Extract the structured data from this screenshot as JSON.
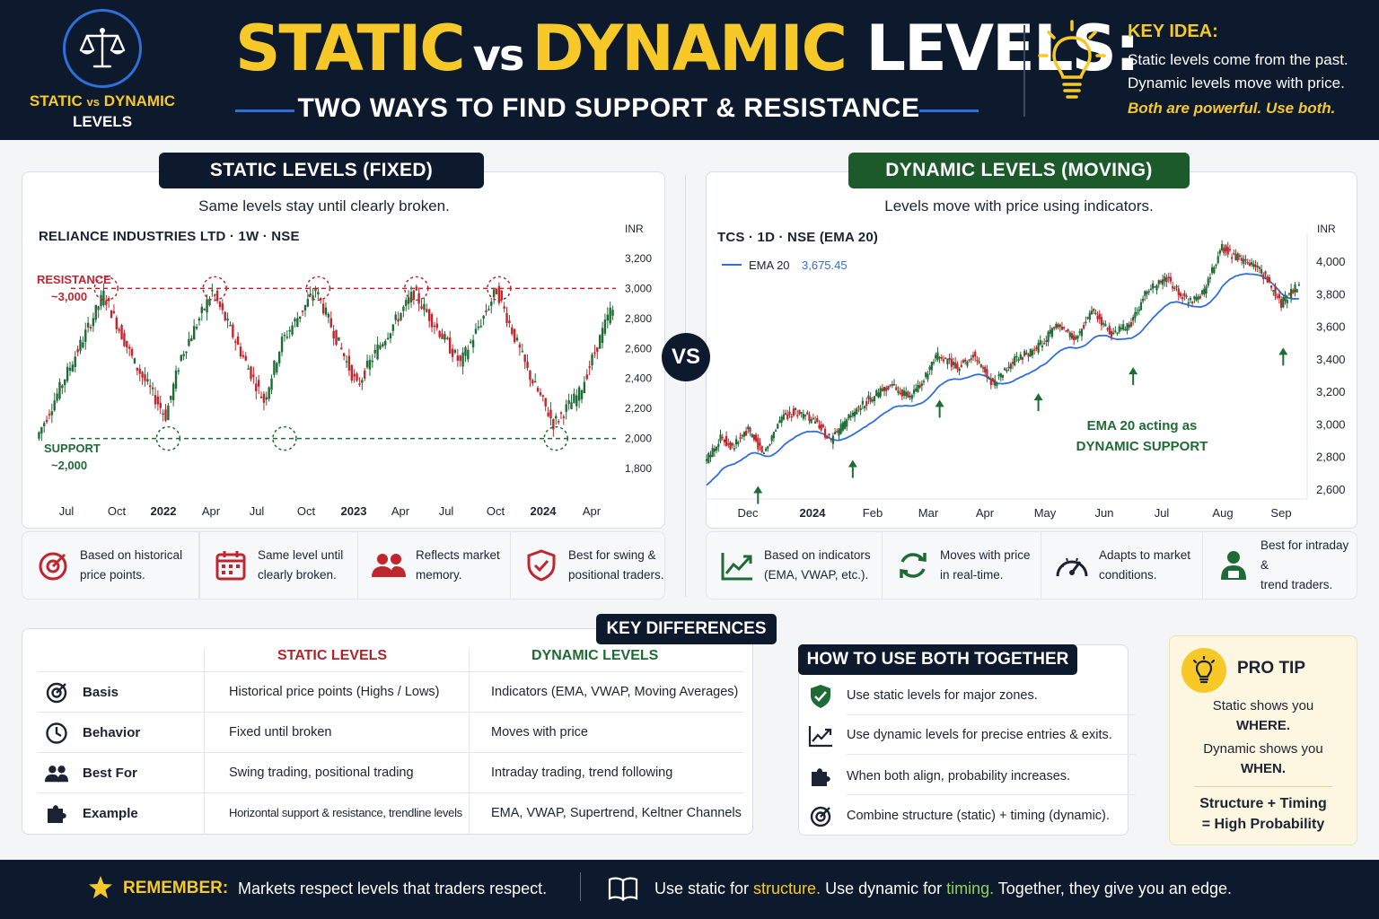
{
  "header": {
    "logo_line1_a": "STATIC",
    "logo_line1_vs": "vs",
    "logo_line1_b": "DYNAMIC",
    "logo_line2": "LEVELS",
    "title_static": "STATIC",
    "title_vs": "vs",
    "title_dynamic": "DYNAMIC",
    "title_levels": "LEVELS:",
    "subtitle": "TWO WAYS TO FIND SUPPORT & RESISTANCE",
    "key_idea_title": "KEY IDEA:",
    "key_idea_line1": "Static levels come from the past.",
    "key_idea_line2": "Dynamic levels move with price.",
    "key_idea_line3": "Both are powerful. Use both."
  },
  "static_panel": {
    "tag": "STATIC LEVELS (FIXED)",
    "subtitle": "Same levels stay until clearly broken.",
    "ticker": "RELIANCE INDUSTRIES LTD · 1W · NSE",
    "features": [
      {
        "icon": "target-icon",
        "line1": "Based on historical",
        "line2": "price points."
      },
      {
        "icon": "calendar-icon",
        "line1": "Same level until",
        "line2": "clearly broken."
      },
      {
        "icon": "users-icon",
        "line1": "Reflects market",
        "line2": "memory."
      },
      {
        "icon": "shield-check-icon",
        "line1": "Best for swing &",
        "line2": "positional traders."
      }
    ]
  },
  "dynamic_panel": {
    "tag": "DYNAMIC LEVELS (MOVING)",
    "subtitle": "Levels move with price using indicators.",
    "ticker": "TCS · 1D · NSE (EMA 20)",
    "features": [
      {
        "icon": "trend-up-icon",
        "line1": "Based on indicators",
        "line2": "(EMA, VWAP, etc.)."
      },
      {
        "icon": "refresh-icon",
        "line1": "Moves with price",
        "line2": "in real-time."
      },
      {
        "icon": "gauge-icon",
        "line1": "Adapts to market",
        "line2": "conditions."
      },
      {
        "icon": "trader-icon",
        "line1": "Best for intraday &",
        "line2": "trend traders."
      }
    ]
  },
  "vs_badge": "VS",
  "chart_data": [
    {
      "type": "candlestick",
      "title": "RELIANCE INDUSTRIES LTD · 1W · NSE",
      "ylabel": "INR",
      "ylim": [
        1700,
        3300
      ],
      "yticks": [
        "3,200",
        "3,000",
        "2,800",
        "2,600",
        "2,400",
        "2,200",
        "2,000",
        "1,800"
      ],
      "xticks": [
        "Jul",
        "Oct",
        "2022",
        "Apr",
        "Jul",
        "Oct",
        "2023",
        "Apr",
        "Jul",
        "Oct",
        "2024",
        "Apr"
      ],
      "resistance": {
        "value": 3000,
        "label": "RESISTANCE",
        "sublabel": "~3,000"
      },
      "support": {
        "value": 2000,
        "label": "SUPPORT",
        "sublabel": "~2,000"
      },
      "path": [
        [
          0,
          2000
        ],
        [
          26,
          2960
        ],
        [
          38,
          2500
        ],
        [
          50,
          2150
        ],
        [
          56,
          2550
        ],
        [
          68,
          2980
        ],
        [
          88,
          2250
        ],
        [
          95,
          2650
        ],
        [
          108,
          2990
        ],
        [
          124,
          2350
        ],
        [
          132,
          2600
        ],
        [
          146,
          2970
        ],
        [
          164,
          2500
        ],
        [
          178,
          2990
        ],
        [
          190,
          2450
        ],
        [
          200,
          2100
        ],
        [
          210,
          2300
        ],
        [
          222,
          2850
        ]
      ],
      "highlights": {
        "resistance_x": [
          26,
          68,
          108,
          146,
          178
        ],
        "support_x": [
          50,
          95,
          200
        ]
      }
    },
    {
      "type": "candlestick",
      "title": "TCS · 1D · NSE (EMA 20)",
      "ylabel": "INR",
      "ylim": [
        2550,
        4150
      ],
      "yticks": [
        "4,000",
        "3,800",
        "3,600",
        "3,400",
        "3,200",
        "3,000",
        "2,800",
        "2,600"
      ],
      "xticks": [
        "Dec",
        "2024",
        "Feb",
        "Mar",
        "Apr",
        "May",
        "Jun",
        "Jul",
        "Aug",
        "Sep"
      ],
      "series": [
        {
          "name": "EMA 20",
          "last_value": "3,675.45"
        }
      ],
      "path": [
        [
          0,
          2760
        ],
        [
          8,
          2920
        ],
        [
          14,
          2860
        ],
        [
          22,
          2960
        ],
        [
          30,
          2820
        ],
        [
          38,
          3030
        ],
        [
          46,
          3080
        ],
        [
          56,
          3010
        ],
        [
          64,
          2900
        ],
        [
          74,
          3050
        ],
        [
          84,
          3160
        ],
        [
          94,
          3240
        ],
        [
          104,
          3160
        ],
        [
          112,
          3290
        ],
        [
          118,
          3420
        ],
        [
          128,
          3350
        ],
        [
          136,
          3420
        ],
        [
          146,
          3250
        ],
        [
          158,
          3400
        ],
        [
          168,
          3460
        ],
        [
          178,
          3600
        ],
        [
          188,
          3520
        ],
        [
          196,
          3700
        ],
        [
          206,
          3550
        ],
        [
          216,
          3620
        ],
        [
          224,
          3820
        ],
        [
          234,
          3890
        ],
        [
          244,
          3760
        ],
        [
          252,
          3800
        ],
        [
          262,
          4080
        ],
        [
          272,
          4000
        ],
        [
          280,
          3960
        ],
        [
          288,
          3830
        ],
        [
          292,
          3740
        ],
        [
          300,
          3850
        ]
      ],
      "support_arrows_x": [
        26,
        74,
        118,
        168,
        216,
        292
      ],
      "annotation": [
        "EMA 20 acting as",
        "DYNAMIC SUPPORT"
      ]
    }
  ],
  "key_differences": {
    "tag": "KEY DIFFERENCES",
    "col_static": "STATIC LEVELS",
    "col_dynamic": "DYNAMIC LEVELS",
    "rows": [
      {
        "icon": "target-icon",
        "label": "Basis",
        "static": "Historical price points (Highs / Lows)",
        "dynamic": "Indicators (EMA, VWAP, Moving Averages)"
      },
      {
        "icon": "clock-icon",
        "label": "Behavior",
        "static": "Fixed until broken",
        "dynamic": "Moves with price"
      },
      {
        "icon": "users-icon",
        "label": "Best For",
        "static": "Swing trading, positional trading",
        "dynamic": "Intraday trading, trend following"
      },
      {
        "icon": "puzzle-icon",
        "label": "Example",
        "static": "Horizontal support & resistance, trendline levels",
        "dynamic": "EMA, VWAP, Supertrend, Keltner Channels"
      }
    ]
  },
  "how_to_use": {
    "tag": "HOW TO USE BOTH TOGETHER",
    "items": [
      {
        "icon": "shield-check-icon",
        "text": "Use static levels for major zones."
      },
      {
        "icon": "trend-up-icon",
        "text": "Use dynamic levels for precise entries & exits."
      },
      {
        "icon": "puzzle-icon",
        "text": "When both align, probability increases."
      },
      {
        "icon": "target-icon",
        "text": "Combine structure (static) + timing (dynamic)."
      }
    ]
  },
  "pro_tip": {
    "title": "PRO TIP",
    "line1": "Static shows you",
    "line2": "WHERE.",
    "line3": "Dynamic shows you",
    "line4": "WHEN.",
    "line5": "Structure + Timing",
    "line6": "= High Probability"
  },
  "footer": {
    "remember": "REMEMBER:",
    "text1": "Markets respect levels that traders respect.",
    "t2_a": "Use static for ",
    "t2_b": "structure.",
    "t2_c": " Use dynamic for ",
    "t2_d": "timing.",
    "t2_e": " Together, they give you an edge."
  },
  "colors": {
    "navy": "#0d1a2e",
    "yellow": "#f7c928",
    "red": "#c0262d",
    "green": "#1f6b35",
    "blue": "#2f6fd8"
  }
}
